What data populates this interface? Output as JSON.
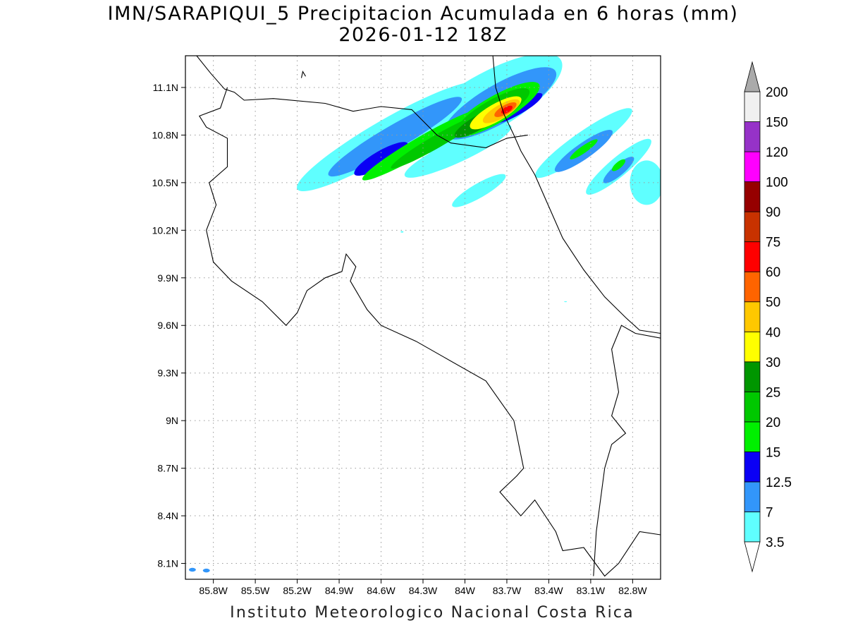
{
  "title": {
    "line1": "IMN/SARAPIQUI_5 Precipitacion Acumulada en 6 horas (mm)",
    "line2": "2026-01-12 18Z"
  },
  "credit": "Instituto Meteorologico Nacional Costa Rica",
  "map": {
    "lon_range": [
      -86.0,
      -82.6
    ],
    "lat_range": [
      8.0,
      11.3
    ],
    "lon_ticks": [
      {
        "value": -85.8,
        "label": "85.8W"
      },
      {
        "value": -85.5,
        "label": "85.5W"
      },
      {
        "value": -85.2,
        "label": "85.2W"
      },
      {
        "value": -84.9,
        "label": "84.9W"
      },
      {
        "value": -84.6,
        "label": "84.6W"
      },
      {
        "value": -84.3,
        "label": "84.3W"
      },
      {
        "value": -84.0,
        "label": "84W"
      },
      {
        "value": -83.7,
        "label": "83.7W"
      },
      {
        "value": -83.4,
        "label": "83.4W"
      },
      {
        "value": -83.1,
        "label": "83.1W"
      },
      {
        "value": -82.8,
        "label": "82.8W"
      }
    ],
    "lat_ticks": [
      {
        "value": 11.1,
        "label": "11.1N"
      },
      {
        "value": 10.8,
        "label": "10.8N"
      },
      {
        "value": 10.5,
        "label": "10.5N"
      },
      {
        "value": 10.2,
        "label": "10.2N"
      },
      {
        "value": 9.9,
        "label": "9.9N"
      },
      {
        "value": 9.6,
        "label": "9.6N"
      },
      {
        "value": 9.3,
        "label": "9.3N"
      },
      {
        "value": 9.0,
        "label": "9N"
      },
      {
        "value": 8.7,
        "label": "8.7N"
      },
      {
        "value": 8.4,
        "label": "8.4N"
      },
      {
        "value": 8.1,
        "label": "8.1N"
      }
    ],
    "grid": "dotted",
    "coastline_color": "#000000"
  },
  "colorbar": {
    "unit": "mm",
    "labels": [
      "3.5",
      "7",
      "12.5",
      "15",
      "20",
      "25",
      "30",
      "40",
      "50",
      "60",
      "75",
      "90",
      "100",
      "120",
      "150",
      "200"
    ],
    "colors": [
      "#5fffff",
      "#3296fa",
      "#0a00f5",
      "#00f000",
      "#00c800",
      "#009600",
      "#ffff00",
      "#ffc800",
      "#ff6400",
      "#ff0000",
      "#c83200",
      "#960000",
      "#ff00ff",
      "#9632c8",
      "#f0f0f0"
    ],
    "over_color": "#aaaaaa",
    "under_color": "#ffffff"
  },
  "precip_cells": [
    {
      "lon": -84.55,
      "lat": 10.79,
      "dlon": 0.75,
      "dlat": 0.11,
      "angle": -30,
      "level": 3.5
    },
    {
      "lon": -83.85,
      "lat": 11.0,
      "dlon": 0.62,
      "dlat": 0.18,
      "angle": -30,
      "level": 3.5
    },
    {
      "lon": -84.05,
      "lat": 10.7,
      "dlon": 0.42,
      "dlat": 0.07,
      "angle": -25,
      "level": 3.5
    },
    {
      "lon": -83.15,
      "lat": 10.75,
      "dlon": 0.42,
      "dlat": 0.07,
      "angle": -35,
      "level": 3.5
    },
    {
      "lon": -82.9,
      "lat": 10.6,
      "dlon": 0.3,
      "dlat": 0.06,
      "angle": -40,
      "level": 3.5
    },
    {
      "lon": -82.7,
      "lat": 10.5,
      "dlon": 0.12,
      "dlat": 0.14,
      "angle": 0,
      "level": 3.5
    },
    {
      "lon": -83.9,
      "lat": 10.45,
      "dlon": 0.22,
      "dlat": 0.045,
      "angle": -30,
      "level": 3.5
    },
    {
      "lon": -84.5,
      "lat": 10.79,
      "dlon": 0.55,
      "dlat": 0.075,
      "angle": -30,
      "level": 7
    },
    {
      "lon": -83.75,
      "lat": 11.0,
      "dlon": 0.46,
      "dlat": 0.12,
      "angle": -30,
      "level": 7
    },
    {
      "lon": -83.15,
      "lat": 10.7,
      "dlon": 0.25,
      "dlat": 0.05,
      "angle": -35,
      "level": 7
    },
    {
      "lon": -82.9,
      "lat": 10.58,
      "dlon": 0.14,
      "dlat": 0.035,
      "angle": -40,
      "level": 7
    },
    {
      "lon": -84.6,
      "lat": 10.65,
      "dlon": 0.22,
      "dlat": 0.05,
      "angle": -30,
      "level": 12.5
    },
    {
      "lon": -83.62,
      "lat": 10.97,
      "dlon": 0.2,
      "dlat": 0.04,
      "angle": -30,
      "level": 12.5
    },
    {
      "lon": -84.3,
      "lat": 10.74,
      "dlon": 0.5,
      "dlat": 0.055,
      "angle": -30,
      "level": 15
    },
    {
      "lon": -83.78,
      "lat": 10.96,
      "dlon": 0.36,
      "dlat": 0.085,
      "angle": -30,
      "level": 15
    },
    {
      "lon": -83.15,
      "lat": 10.71,
      "dlon": 0.12,
      "dlat": 0.022,
      "angle": -35,
      "level": 15
    },
    {
      "lon": -82.9,
      "lat": 10.61,
      "dlon": 0.06,
      "dlat": 0.02,
      "angle": -40,
      "level": 15
    },
    {
      "lon": -84.2,
      "lat": 10.76,
      "dlon": 0.38,
      "dlat": 0.04,
      "angle": -30,
      "level": 20
    },
    {
      "lon": -83.8,
      "lat": 10.95,
      "dlon": 0.3,
      "dlat": 0.07,
      "angle": -30,
      "level": 20
    },
    {
      "lon": -83.9,
      "lat": 10.88,
      "dlon": 0.2,
      "dlat": 0.045,
      "angle": -30,
      "level": 25
    },
    {
      "lon": -83.78,
      "lat": 10.94,
      "dlon": 0.21,
      "dlat": 0.055,
      "angle": -30,
      "level": 30
    },
    {
      "lon": -83.74,
      "lat": 10.95,
      "dlon": 0.15,
      "dlat": 0.042,
      "angle": -30,
      "level": 40
    },
    {
      "lon": -83.71,
      "lat": 10.96,
      "dlon": 0.09,
      "dlat": 0.028,
      "angle": -30,
      "level": 50
    },
    {
      "lon": -83.7,
      "lat": 10.96,
      "dlon": 0.045,
      "dlat": 0.018,
      "angle": -30,
      "level": 60
    },
    {
      "lon": -85.95,
      "lat": 8.06,
      "dlon": 0.025,
      "dlat": 0.012,
      "angle": 0,
      "level": 7
    },
    {
      "lon": -85.85,
      "lat": 8.055,
      "dlon": 0.025,
      "dlat": 0.012,
      "angle": 0,
      "level": 7
    },
    {
      "lon": -84.45,
      "lat": 10.19,
      "dlon": 0.01,
      "dlat": 0.005,
      "angle": 0,
      "level": 3.5
    },
    {
      "lon": -83.28,
      "lat": 9.75,
      "dlon": 0.01,
      "dlat": 0.003,
      "angle": 0,
      "level": 3.5
    }
  ],
  "coastlines": [
    [
      [
        -85.92,
        11.3
      ],
      [
        -85.82,
        11.19
      ],
      [
        -85.72,
        11.09
      ],
      [
        -85.65,
        11.07
      ],
      [
        -85.58,
        11.02
      ],
      [
        -85.37,
        11.03
      ],
      [
        -85.0,
        11.0
      ],
      [
        -84.8,
        10.95
      ],
      [
        -84.6,
        10.98
      ],
      [
        -84.38,
        10.96
      ],
      [
        -84.2,
        10.8
      ],
      [
        -84.1,
        10.75
      ],
      [
        -83.85,
        10.72
      ],
      [
        -83.7,
        10.78
      ],
      [
        -83.55,
        10.8
      ]
    ],
    [
      [
        -83.8,
        11.3
      ],
      [
        -83.78,
        11.1
      ],
      [
        -83.72,
        10.93
      ],
      [
        -83.65,
        10.8
      ],
      [
        -83.6,
        10.7
      ],
      [
        -83.5,
        10.55
      ],
      [
        -83.4,
        10.35
      ],
      [
        -83.3,
        10.15
      ],
      [
        -83.15,
        9.95
      ],
      [
        -83.0,
        9.78
      ],
      [
        -82.85,
        9.65
      ],
      [
        -82.75,
        9.57
      ],
      [
        -82.6,
        9.55
      ]
    ],
    [
      [
        -85.7,
        11.1
      ],
      [
        -85.75,
        10.97
      ],
      [
        -85.9,
        10.92
      ],
      [
        -85.85,
        10.85
      ],
      [
        -85.7,
        10.78
      ],
      [
        -85.7,
        10.6
      ],
      [
        -85.83,
        10.5
      ],
      [
        -85.78,
        10.36
      ],
      [
        -85.85,
        10.2
      ],
      [
        -85.8,
        10.0
      ],
      [
        -85.67,
        9.88
      ],
      [
        -85.45,
        9.75
      ],
      [
        -85.28,
        9.6
      ],
      [
        -85.2,
        9.68
      ],
      [
        -85.13,
        9.82
      ],
      [
        -85.0,
        9.9
      ],
      [
        -84.88,
        9.94
      ],
      [
        -84.85,
        10.05
      ],
      [
        -84.78,
        9.97
      ],
      [
        -84.82,
        9.88
      ],
      [
        -84.7,
        9.7
      ],
      [
        -84.6,
        9.6
      ],
      [
        -84.35,
        9.5
      ],
      [
        -84.15,
        9.4
      ],
      [
        -83.85,
        9.25
      ],
      [
        -83.65,
        9.0
      ],
      [
        -83.58,
        8.7
      ],
      [
        -83.63,
        8.65
      ],
      [
        -83.75,
        8.55
      ],
      [
        -83.6,
        8.4
      ],
      [
        -83.5,
        8.5
      ],
      [
        -83.35,
        8.3
      ],
      [
        -83.3,
        8.18
      ],
      [
        -83.15,
        8.2
      ],
      [
        -83.0,
        8.02
      ],
      [
        -82.9,
        8.1
      ],
      [
        -82.75,
        8.3
      ],
      [
        -82.6,
        8.28
      ]
    ],
    [
      [
        -83.08,
        8.02
      ],
      [
        -83.06,
        8.3
      ],
      [
        -83.0,
        8.7
      ],
      [
        -82.95,
        8.85
      ],
      [
        -82.85,
        8.92
      ],
      [
        -82.95,
        9.03
      ],
      [
        -82.9,
        9.18
      ],
      [
        -82.95,
        9.45
      ],
      [
        -82.88,
        9.6
      ],
      [
        -82.78,
        9.55
      ],
      [
        -82.6,
        9.52
      ]
    ],
    [
      [
        -85.17,
        11.16
      ],
      [
        -85.16,
        11.2
      ],
      [
        -85.14,
        11.17
      ]
    ]
  ]
}
